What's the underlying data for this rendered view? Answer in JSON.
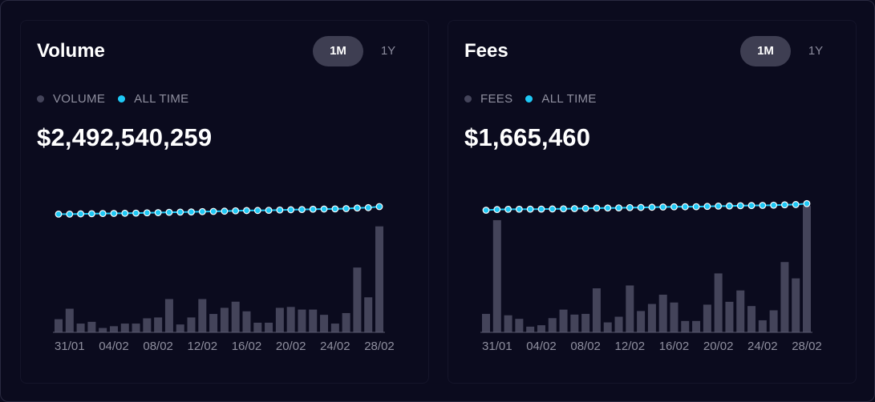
{
  "cards": [
    {
      "title": "Volume",
      "active_period": "1M",
      "inactive_period": "1Y",
      "legend": [
        {
          "label": "VOLUME",
          "color": "#44445a"
        },
        {
          "label": "ALL TIME",
          "color": "#1ec8f5"
        }
      ],
      "total": "$2,492,540,259"
    },
    {
      "title": "Fees",
      "active_period": "1M",
      "inactive_period": "1Y",
      "legend": [
        {
          "label": "FEES",
          "color": "#44445a"
        },
        {
          "label": "ALL TIME",
          "color": "#1ec8f5"
        }
      ],
      "total": "$1,665,460"
    }
  ],
  "chart_data": [
    {
      "type": "bar",
      "title": "Volume",
      "xlabel": "",
      "ylabel": "",
      "categories": [
        "30/01",
        "31/01",
        "01/02",
        "02/02",
        "03/02",
        "04/02",
        "05/02",
        "06/02",
        "07/02",
        "08/02",
        "09/02",
        "10/02",
        "11/02",
        "12/02",
        "13/02",
        "14/02",
        "15/02",
        "16/02",
        "17/02",
        "18/02",
        "19/02",
        "20/02",
        "21/02",
        "22/02",
        "23/02",
        "24/02",
        "25/02",
        "26/02",
        "27/02",
        "28/02"
      ],
      "tick_labels": [
        "31/01",
        "04/02",
        "08/02",
        "12/02",
        "16/02",
        "20/02",
        "24/02",
        "28/02"
      ],
      "series": [
        {
          "name": "VOLUME",
          "kind": "bar",
          "color": "#44445a",
          "values": [
            15,
            27,
            10,
            12,
            5,
            7,
            10,
            10,
            16,
            17,
            38,
            9,
            17,
            38,
            21,
            28,
            35,
            24,
            11,
            11,
            28,
            29,
            26,
            26,
            20,
            10,
            22,
            74,
            40,
            121
          ]
        },
        {
          "name": "ALL TIME",
          "kind": "line",
          "color": "#1ec8f5",
          "values": [
            135,
            135,
            135.3,
            135.5,
            135.7,
            135.8,
            136,
            136.2,
            136.5,
            136.7,
            137.1,
            137.3,
            137.5,
            137.9,
            138.1,
            138.4,
            138.8,
            139.1,
            139.2,
            139.4,
            139.7,
            140,
            140.3,
            140.6,
            140.8,
            141,
            141.3,
            142,
            142.4,
            143.6
          ]
        }
      ],
      "grid": false
    },
    {
      "type": "bar",
      "title": "Fees",
      "xlabel": "",
      "ylabel": "",
      "categories": [
        "30/01",
        "31/01",
        "01/02",
        "02/02",
        "03/02",
        "04/02",
        "05/02",
        "06/02",
        "07/02",
        "08/02",
        "09/02",
        "10/02",
        "11/02",
        "12/02",
        "13/02",
        "14/02",
        "15/02",
        "16/02",
        "17/02",
        "18/02",
        "19/02",
        "20/02",
        "21/02",
        "22/02",
        "23/02",
        "24/02",
        "25/02",
        "26/02",
        "27/02",
        "28/02"
      ],
      "tick_labels": [
        "31/01",
        "04/02",
        "08/02",
        "12/02",
        "16/02",
        "20/02",
        "24/02",
        "28/02"
      ],
      "series": [
        {
          "name": "FEES",
          "kind": "bar",
          "color": "#44445a",
          "values": [
            26,
            158,
            24,
            19,
            8,
            10,
            20,
            32,
            25,
            26,
            62,
            14,
            22,
            66,
            30,
            40,
            53,
            42,
            16,
            16,
            39,
            83,
            43,
            59,
            37,
            17,
            31,
            99,
            76,
            178
          ]
        },
        {
          "name": "ALL TIME",
          "kind": "line",
          "color": "#1ec8f5",
          "values": [
            172,
            173,
            173.3,
            173.4,
            173.5,
            173.6,
            173.8,
            174,
            174.3,
            174.6,
            175,
            175.1,
            175.3,
            175.7,
            175.9,
            176.2,
            176.5,
            176.8,
            176.9,
            177,
            177.4,
            177.8,
            178,
            178.4,
            178.6,
            178.8,
            179.1,
            179.6,
            180,
            181.3
          ]
        }
      ],
      "grid": false
    }
  ]
}
